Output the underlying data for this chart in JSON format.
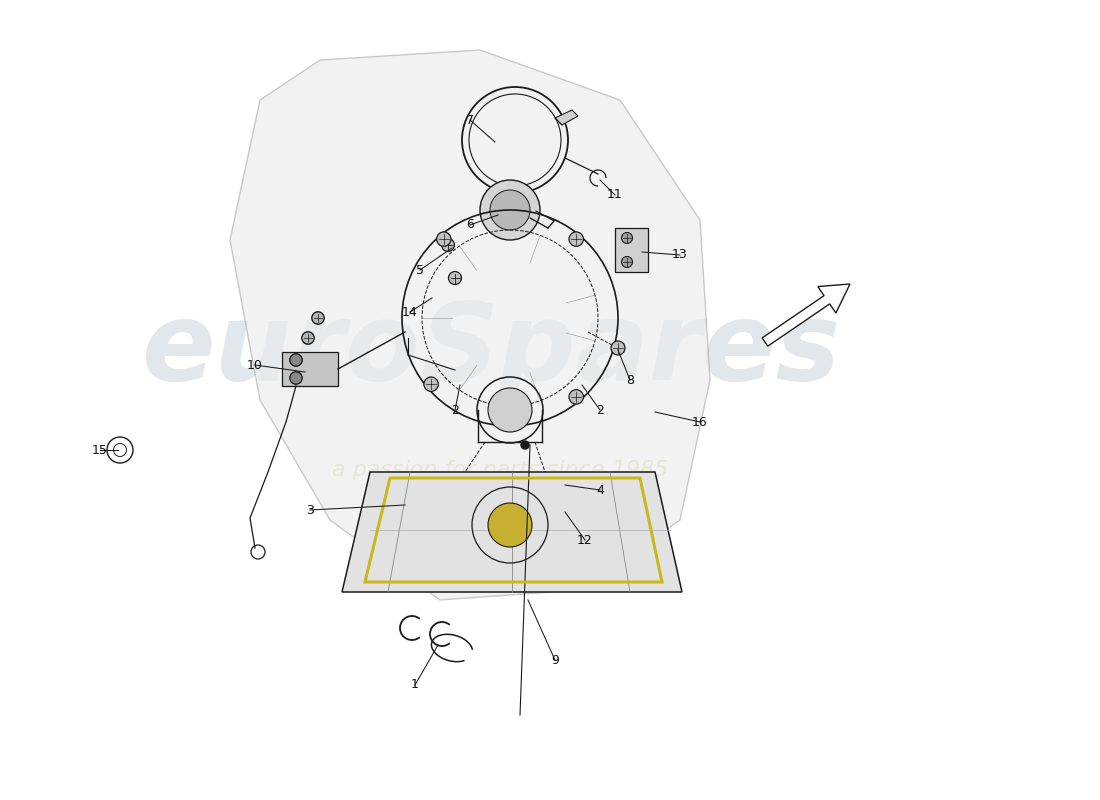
{
  "bg_color": "#ffffff",
  "line_color": "#1a1a1a",
  "watermark_color": "#d0d8e0",
  "watermark_color2": "#d8d8a0",
  "leaders": [
    [
      4.15,
      1.15,
      4.38,
      1.55,
      "1"
    ],
    [
      4.55,
      3.9,
      4.6,
      4.15,
      "2"
    ],
    [
      6.0,
      3.9,
      5.82,
      4.15,
      "2"
    ],
    [
      3.1,
      2.9,
      4.05,
      2.95,
      "3"
    ],
    [
      6.0,
      3.1,
      5.65,
      3.15,
      "4"
    ],
    [
      4.2,
      5.3,
      4.52,
      5.52,
      "5"
    ],
    [
      4.7,
      5.75,
      4.98,
      5.85,
      "6"
    ],
    [
      4.7,
      6.8,
      4.95,
      6.58,
      "7"
    ],
    [
      6.3,
      4.2,
      6.18,
      4.5,
      "8"
    ],
    [
      5.55,
      1.4,
      5.28,
      2.0,
      "9"
    ],
    [
      2.55,
      4.35,
      3.05,
      4.28,
      "10"
    ],
    [
      6.15,
      6.05,
      6.0,
      6.2,
      "11"
    ],
    [
      5.85,
      2.6,
      5.65,
      2.88,
      "12"
    ],
    [
      6.8,
      5.45,
      6.42,
      5.48,
      "13"
    ],
    [
      4.1,
      4.88,
      4.32,
      5.02,
      "14"
    ],
    [
      1.0,
      3.5,
      1.18,
      3.5,
      "15"
    ],
    [
      7.0,
      3.78,
      6.55,
      3.88,
      "16"
    ]
  ]
}
